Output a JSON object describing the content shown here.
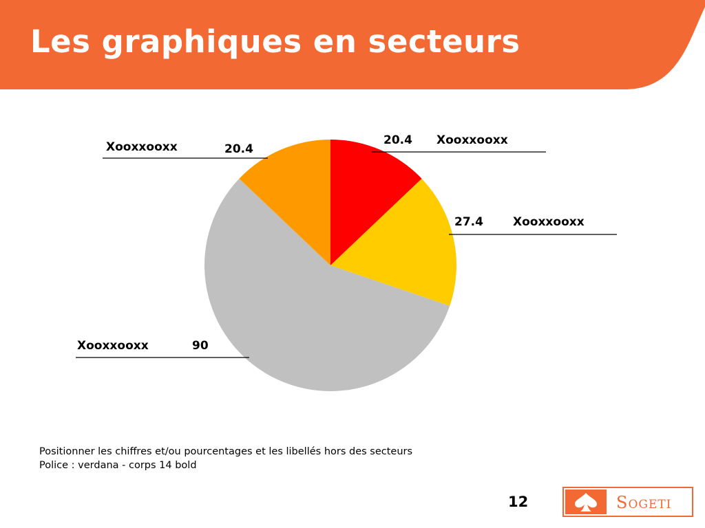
{
  "slide": {
    "title": "Les graphiques en secteurs",
    "page_number": "12",
    "header_color": "#f26934"
  },
  "notes": [
    "Positionner les chiffres et/ou pourcentages et les libellés hors des secteurs",
    "Police : verdana - corps 14 bold"
  ],
  "logo": {
    "text": "Sogeti",
    "icon": "spade-icon",
    "color": "#f26934"
  },
  "chart_data": {
    "type": "pie",
    "start_angle_deg": 0,
    "direction": "clockwise",
    "slices": [
      {
        "label": "Xooxxooxx",
        "value": 20.4,
        "value_label": "20.4",
        "color": "#ff0000"
      },
      {
        "label": "Xooxxooxx",
        "value": 27.4,
        "value_label": "27.4",
        "color": "#ffcc00"
      },
      {
        "label": "Xooxxooxx",
        "value": 90,
        "value_label": "90",
        "color": "#c0c0c0"
      },
      {
        "label": "Xooxxooxx",
        "value": 20.4,
        "value_label": "20.4",
        "color": "#ff9900"
      }
    ]
  }
}
